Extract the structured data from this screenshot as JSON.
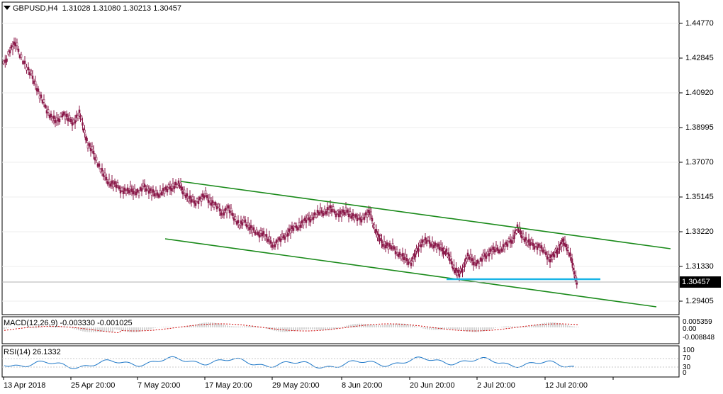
{
  "header": {
    "symbol_timeframe": "GBPUSD,H4",
    "open": "1.31028",
    "high": "1.31080",
    "low": "1.30213",
    "close": "1.30457"
  },
  "price_axis": {
    "labels": [
      "1.44770",
      "1.42845",
      "1.40920",
      "1.38995",
      "1.37070",
      "1.35145",
      "1.33220",
      "1.31330",
      "1.29405"
    ],
    "current_price": "1.30457"
  },
  "time_axis": {
    "labels": [
      "13 Apr 2018",
      "25 Apr 20:00",
      "7 May 20:00",
      "17 May 20:00",
      "29 May 20:00",
      "8 Jun 20:00",
      "20 Jun 20:00",
      "2 Jul 20:00",
      "12 Jul 20:00"
    ]
  },
  "macd": {
    "label": "MACD(12,26,9)",
    "main": "-0.003330",
    "signal": "-0.001025",
    "scale_top": "0.005359",
    "scale_mid": "0.00",
    "scale_bottom": "-0.008848"
  },
  "rsi": {
    "label": "RSI(14)",
    "value": "26.1332",
    "levels": [
      "100",
      "70",
      "30",
      "0"
    ]
  },
  "colors": {
    "candle": "#8b1a4a",
    "channel": "#1a8a1a",
    "support": "#18b4e6",
    "macd_signal": "#cc0000",
    "rsi": "#1e78c8",
    "grid": "#dcdcdc"
  }
}
